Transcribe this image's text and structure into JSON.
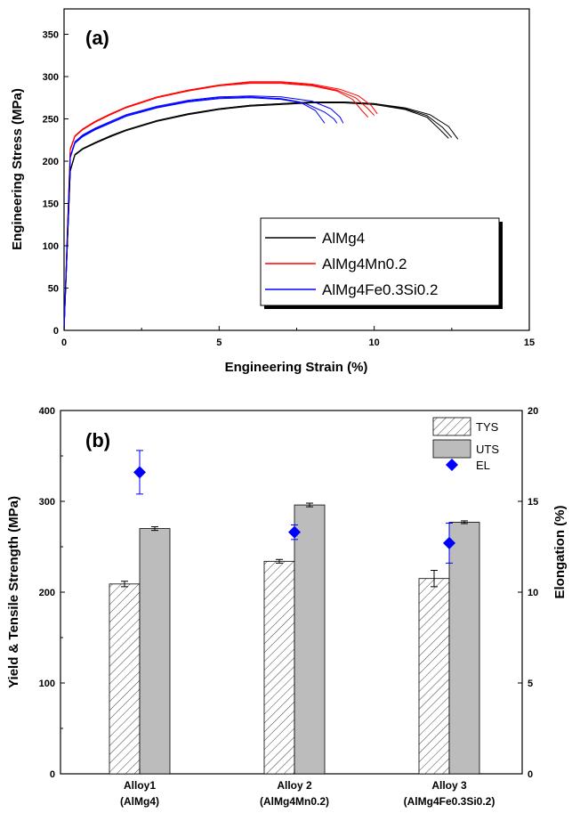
{
  "chart_data": [
    {
      "type": "line",
      "panel_label": "(a)",
      "xlabel": "Engineering Strain (%)",
      "ylabel": "Engineering Stress (MPa)",
      "xlim": [
        0,
        15
      ],
      "ylim": [
        0,
        380
      ],
      "xticks": [
        0,
        5,
        10,
        15
      ],
      "yticks": [
        0,
        50,
        100,
        150,
        200,
        250,
        300,
        350
      ],
      "grid": false,
      "legend_position": "bottom-right",
      "series": [
        {
          "name": "AlMg4",
          "color": "#000000",
          "curves": [
            [
              [
                0,
                0
              ],
              [
                0.1,
                95
              ],
              [
                0.2,
                190
              ],
              [
                0.35,
                208
              ],
              [
                0.6,
                215
              ],
              [
                1,
                222
              ],
              [
                1.5,
                230
              ],
              [
                2,
                237
              ],
              [
                3,
                248
              ],
              [
                4,
                256
              ],
              [
                5,
                262
              ],
              [
                6,
                266
              ],
              [
                7,
                268
              ],
              [
                8,
                270
              ],
              [
                9,
                270
              ],
              [
                10,
                268
              ],
              [
                11,
                262
              ],
              [
                11.7,
                254
              ],
              [
                12.2,
                240
              ],
              [
                12.5,
                228
              ]
            ],
            [
              [
                0,
                0
              ],
              [
                0.1,
                95
              ],
              [
                0.2,
                188
              ],
              [
                0.35,
                207
              ],
              [
                0.6,
                214
              ],
              [
                1,
                221
              ],
              [
                1.5,
                229
              ],
              [
                2,
                236
              ],
              [
                3,
                247
              ],
              [
                4,
                255
              ],
              [
                5,
                261
              ],
              [
                6,
                265
              ],
              [
                7,
                267
              ],
              [
                8,
                269
              ],
              [
                9,
                269
              ],
              [
                10,
                267
              ],
              [
                11,
                261
              ],
              [
                11.7,
                252
              ],
              [
                12.1,
                238
              ],
              [
                12.4,
                227
              ]
            ],
            [
              [
                0,
                0
              ],
              [
                0.1,
                95
              ],
              [
                0.2,
                189
              ],
              [
                0.35,
                208
              ],
              [
                0.6,
                215
              ],
              [
                1,
                222
              ],
              [
                1.5,
                230
              ],
              [
                2,
                237
              ],
              [
                3,
                248
              ],
              [
                4,
                256
              ],
              [
                5,
                262
              ],
              [
                6,
                266
              ],
              [
                7,
                268
              ],
              [
                8,
                270
              ],
              [
                9,
                270
              ],
              [
                10,
                268
              ],
              [
                11,
                263
              ],
              [
                11.8,
                255
              ],
              [
                12.4,
                241
              ],
              [
                12.7,
                226
              ]
            ]
          ]
        },
        {
          "name": "AlMg4Mn0.2",
          "color": "#ff0000",
          "curves": [
            [
              [
                0,
                0
              ],
              [
                0.1,
                110
              ],
              [
                0.2,
                215
              ],
              [
                0.35,
                230
              ],
              [
                0.6,
                238
              ],
              [
                1,
                247
              ],
              [
                1.5,
                256
              ],
              [
                2,
                264
              ],
              [
                3,
                276
              ],
              [
                4,
                284
              ],
              [
                5,
                290
              ],
              [
                6,
                293
              ],
              [
                7,
                293
              ],
              [
                8,
                290
              ],
              [
                8.8,
                284
              ],
              [
                9.4,
                275
              ],
              [
                9.8,
                262
              ],
              [
                10.0,
                254
              ]
            ],
            [
              [
                0,
                0
              ],
              [
                0.1,
                110
              ],
              [
                0.2,
                213
              ],
              [
                0.35,
                229
              ],
              [
                0.6,
                237
              ],
              [
                1,
                246
              ],
              [
                1.5,
                255
              ],
              [
                2,
                263
              ],
              [
                3,
                275
              ],
              [
                4,
                283
              ],
              [
                5,
                289
              ],
              [
                6,
                292
              ],
              [
                7,
                292
              ],
              [
                8,
                289
              ],
              [
                8.8,
                283
              ],
              [
                9.3,
                273
              ],
              [
                9.6,
                260
              ],
              [
                9.8,
                252
              ]
            ],
            [
              [
                0,
                0
              ],
              [
                0.1,
                110
              ],
              [
                0.2,
                214
              ],
              [
                0.35,
                230
              ],
              [
                0.6,
                238
              ],
              [
                1,
                247
              ],
              [
                1.5,
                256
              ],
              [
                2,
                264
              ],
              [
                3,
                276
              ],
              [
                4,
                284
              ],
              [
                5,
                290
              ],
              [
                6,
                294
              ],
              [
                7,
                294
              ],
              [
                8,
                291
              ],
              [
                8.9,
                285
              ],
              [
                9.5,
                277
              ],
              [
                9.9,
                266
              ],
              [
                10.1,
                256
              ]
            ]
          ]
        },
        {
          "name": "AlMg4Fe0.3Si0.2",
          "color": "#0000ff",
          "curves": [
            [
              [
                0,
                0
              ],
              [
                0.1,
                105
              ],
              [
                0.2,
                205
              ],
              [
                0.35,
                222
              ],
              [
                0.6,
                230
              ],
              [
                1,
                238
              ],
              [
                1.5,
                246
              ],
              [
                2,
                254
              ],
              [
                3,
                264
              ],
              [
                4,
                271
              ],
              [
                5,
                275
              ],
              [
                6,
                276
              ],
              [
                7,
                274
              ],
              [
                7.6,
                270
              ],
              [
                8.1,
                260
              ],
              [
                8.3,
                250
              ],
              [
                8.4,
                245
              ]
            ],
            [
              [
                0,
                0
              ],
              [
                0.1,
                105
              ],
              [
                0.2,
                204
              ],
              [
                0.35,
                221
              ],
              [
                0.6,
                229
              ],
              [
                1,
                237
              ],
              [
                1.5,
                245
              ],
              [
                2,
                253
              ],
              [
                3,
                263
              ],
              [
                4,
                270
              ],
              [
                5,
                274
              ],
              [
                6,
                275
              ],
              [
                7,
                273
              ],
              [
                7.8,
                268
              ],
              [
                8.4,
                258
              ],
              [
                8.7,
                250
              ],
              [
                8.8,
                245
              ]
            ],
            [
              [
                0,
                0
              ],
              [
                0.1,
                105
              ],
              [
                0.2,
                206
              ],
              [
                0.35,
                223
              ],
              [
                0.6,
                231
              ],
              [
                1,
                239
              ],
              [
                1.5,
                247
              ],
              [
                2,
                255
              ],
              [
                3,
                265
              ],
              [
                4,
                272
              ],
              [
                5,
                276
              ],
              [
                6,
                277
              ],
              [
                7,
                276
              ],
              [
                8,
                271
              ],
              [
                8.6,
                262
              ],
              [
                8.9,
                252
              ],
              [
                9.0,
                245
              ]
            ]
          ]
        }
      ]
    },
    {
      "type": "bar",
      "panel_label": "(b)",
      "ylabel": "Yield & Tensile Strength (MPa)",
      "y2label": "Elongation (%)",
      "ylim": [
        0,
        400
      ],
      "y2lim": [
        0,
        20
      ],
      "yticks": [
        0,
        100,
        200,
        300,
        400
      ],
      "y2ticks": [
        0,
        5,
        10,
        15,
        20
      ],
      "legend_position": "top-right",
      "categories": [
        {
          "line1": "Alloy1",
          "line2": "(AlMg4)"
        },
        {
          "line1": "Alloy 2",
          "line2": "(AlMg4Mn0.2)"
        },
        {
          "line1": "Alloy 3",
          "line2": "(AlMg4Fe0.3Si0.2)"
        }
      ],
      "series": [
        {
          "name": "TYS",
          "axis": "left",
          "style": "hatched",
          "values": [
            209,
            234,
            215
          ],
          "errors": [
            3,
            2,
            9
          ]
        },
        {
          "name": "UTS",
          "axis": "left",
          "style": "gray",
          "values": [
            270,
            296,
            277
          ],
          "errors": [
            2,
            2,
            1.5
          ]
        },
        {
          "name": "EL",
          "axis": "right",
          "style": "diamond",
          "color": "#0000ff",
          "values": [
            16.6,
            13.3,
            12.7
          ],
          "errors": [
            1.2,
            0.4,
            1.1
          ]
        }
      ]
    }
  ]
}
